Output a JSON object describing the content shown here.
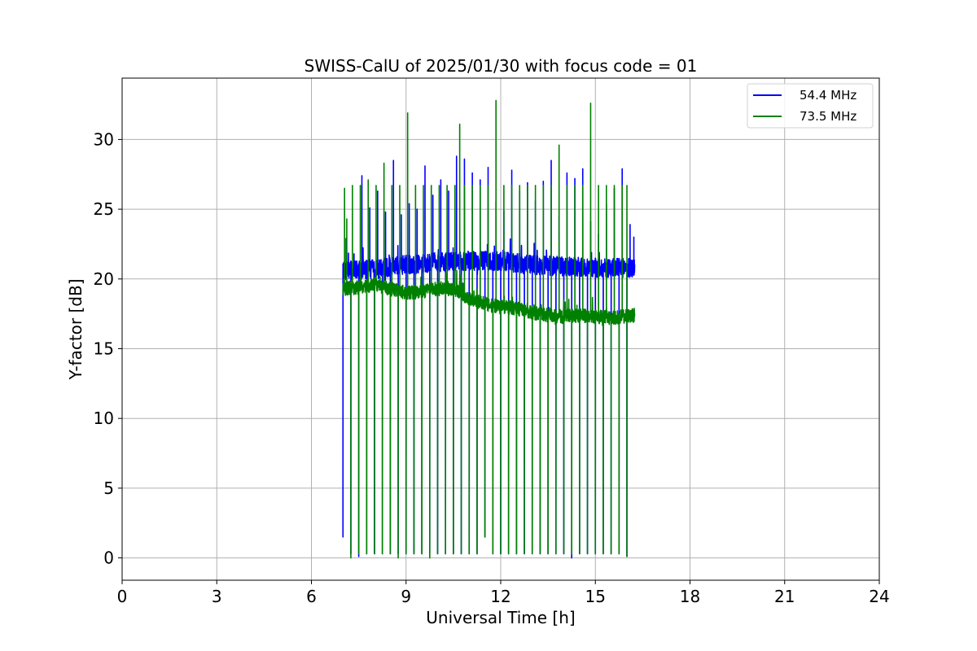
{
  "chart_data": {
    "type": "line",
    "title": "SWISS-CalU of 2025/01/30 with focus code = 01",
    "xlabel": "Universal Time [h]",
    "ylabel": "Y-factor [dB]",
    "xlim": [
      0,
      24
    ],
    "ylim": [
      -1.6,
      34.4
    ],
    "xticks": [
      0,
      3,
      6,
      9,
      12,
      15,
      18,
      21,
      24
    ],
    "yticks": [
      0,
      5,
      10,
      15,
      20,
      25,
      30
    ],
    "grid": true,
    "legend_position": "upper right",
    "time_range": [
      7.0,
      16.25
    ],
    "calibration_period_h": 0.25,
    "series": [
      {
        "name": "54.4 MHz",
        "color": "#0000ff",
        "baseline": [
          [
            7.0,
            20.6
          ],
          [
            8.0,
            20.7
          ],
          [
            9.0,
            21.0
          ],
          [
            10.0,
            21.2
          ],
          [
            11.0,
            21.3
          ],
          [
            12.0,
            21.3
          ],
          [
            13.0,
            21.0
          ],
          [
            14.0,
            20.9
          ],
          [
            15.0,
            20.8
          ],
          [
            16.25,
            20.8
          ]
        ],
        "noise_db": 0.7,
        "peaks": [
          [
            7.1,
            22.9
          ],
          [
            7.35,
            21.8
          ],
          [
            7.6,
            27.4
          ],
          [
            7.85,
            25.1
          ],
          [
            8.1,
            26.3
          ],
          [
            8.35,
            24.8
          ],
          [
            8.6,
            28.5
          ],
          [
            8.85,
            24.6
          ],
          [
            9.1,
            25.4
          ],
          [
            9.35,
            25.0
          ],
          [
            9.6,
            28.1
          ],
          [
            9.85,
            26.0
          ],
          [
            10.1,
            27.1
          ],
          [
            10.35,
            26.3
          ],
          [
            10.6,
            28.8
          ],
          [
            10.85,
            28.6
          ],
          [
            11.1,
            27.6
          ],
          [
            11.35,
            27.1
          ],
          [
            11.6,
            28.0
          ],
          [
            11.85,
            25.6
          ],
          [
            12.1,
            24.9
          ],
          [
            12.35,
            27.8
          ],
          [
            12.6,
            26.3
          ],
          [
            12.85,
            26.9
          ],
          [
            13.1,
            25.6
          ],
          [
            13.35,
            27.0
          ],
          [
            13.6,
            28.5
          ],
          [
            13.85,
            24.5
          ],
          [
            14.1,
            27.6
          ],
          [
            14.35,
            27.2
          ],
          [
            14.6,
            27.9
          ],
          [
            14.85,
            24.1
          ],
          [
            15.1,
            23.2
          ],
          [
            15.35,
            25.4
          ],
          [
            15.6,
            26.5
          ],
          [
            15.85,
            27.9
          ],
          [
            16.1,
            23.9
          ],
          [
            16.22,
            23.0
          ]
        ],
        "drops": [
          [
            7.0,
            1.5
          ],
          [
            7.25,
            0.3
          ],
          [
            7.5,
            0.1
          ],
          [
            7.75,
            0.3
          ],
          [
            8.0,
            0.3
          ],
          [
            8.25,
            0.3
          ],
          [
            8.5,
            0.3
          ],
          [
            8.75,
            0.3
          ],
          [
            9.0,
            0.3
          ],
          [
            9.25,
            0.3
          ],
          [
            9.5,
            0.3
          ],
          [
            9.75,
            0.3
          ],
          [
            10.0,
            0.3
          ],
          [
            10.25,
            0.3
          ],
          [
            10.5,
            0.3
          ],
          [
            10.75,
            0.3
          ],
          [
            11.0,
            0.3
          ],
          [
            11.25,
            0.3
          ],
          [
            11.5,
            1.5
          ],
          [
            11.75,
            0.3
          ],
          [
            12.0,
            0.3
          ],
          [
            12.25,
            0.3
          ],
          [
            12.5,
            0.3
          ],
          [
            12.75,
            0.3
          ],
          [
            13.0,
            0.3
          ],
          [
            13.25,
            0.3
          ],
          [
            13.5,
            0.3
          ],
          [
            13.75,
            0.3
          ],
          [
            14.0,
            0.3
          ],
          [
            14.25,
            0.0
          ],
          [
            14.5,
            0.3
          ],
          [
            14.75,
            0.3
          ],
          [
            15.0,
            0.3
          ],
          [
            15.25,
            0.3
          ],
          [
            15.5,
            0.3
          ],
          [
            15.75,
            0.3
          ],
          [
            16.0,
            0.1
          ]
        ]
      },
      {
        "name": "73.5 MHz",
        "color": "#008000",
        "baseline": [
          [
            7.0,
            19.3
          ],
          [
            7.5,
            19.4
          ],
          [
            8.0,
            19.6
          ],
          [
            8.5,
            19.3
          ],
          [
            9.0,
            19.0
          ],
          [
            9.5,
            19.1
          ],
          [
            10.0,
            19.3
          ],
          [
            10.5,
            19.3
          ],
          [
            11.0,
            18.6
          ],
          [
            11.5,
            18.2
          ],
          [
            12.0,
            18.0
          ],
          [
            12.5,
            17.9
          ],
          [
            13.0,
            17.6
          ],
          [
            13.5,
            17.4
          ],
          [
            14.0,
            17.3
          ],
          [
            14.5,
            17.4
          ],
          [
            15.0,
            17.3
          ],
          [
            15.5,
            17.2
          ],
          [
            16.25,
            17.4
          ]
        ],
        "noise_db": 0.5,
        "peaks": [
          [
            7.05,
            26.5
          ],
          [
            7.12,
            24.3
          ],
          [
            7.3,
            26.7
          ],
          [
            7.55,
            26.7
          ],
          [
            7.8,
            27.1
          ],
          [
            8.05,
            26.7
          ],
          [
            8.3,
            28.3
          ],
          [
            8.55,
            26.7
          ],
          [
            8.8,
            26.7
          ],
          [
            9.05,
            31.9
          ],
          [
            9.3,
            26.7
          ],
          [
            9.55,
            26.7
          ],
          [
            9.8,
            26.7
          ],
          [
            10.05,
            26.7
          ],
          [
            10.3,
            26.7
          ],
          [
            10.55,
            26.7
          ],
          [
            10.7,
            31.1
          ],
          [
            10.85,
            26.7
          ],
          [
            11.1,
            26.7
          ],
          [
            11.35,
            26.7
          ],
          [
            11.6,
            26.7
          ],
          [
            11.85,
            32.8
          ],
          [
            12.1,
            26.7
          ],
          [
            12.35,
            26.7
          ],
          [
            12.6,
            26.7
          ],
          [
            12.85,
            26.7
          ],
          [
            13.1,
            26.7
          ],
          [
            13.35,
            26.7
          ],
          [
            13.6,
            26.7
          ],
          [
            13.85,
            29.6
          ],
          [
            14.1,
            26.7
          ],
          [
            14.35,
            26.7
          ],
          [
            14.6,
            26.7
          ],
          [
            14.85,
            32.6
          ],
          [
            15.1,
            26.7
          ],
          [
            15.35,
            26.7
          ],
          [
            15.6,
            26.7
          ],
          [
            15.85,
            26.7
          ],
          [
            16.0,
            26.7
          ]
        ],
        "drops": [
          [
            7.0,
            19.0
          ],
          [
            7.25,
            0.0
          ],
          [
            7.5,
            0.3
          ],
          [
            7.75,
            0.3
          ],
          [
            8.0,
            0.3
          ],
          [
            8.25,
            0.3
          ],
          [
            8.5,
            0.3
          ],
          [
            8.75,
            0.0
          ],
          [
            9.0,
            0.3
          ],
          [
            9.25,
            0.3
          ],
          [
            9.5,
            0.3
          ],
          [
            9.75,
            0.0
          ],
          [
            10.0,
            0.3
          ],
          [
            10.25,
            0.3
          ],
          [
            10.5,
            0.3
          ],
          [
            10.75,
            0.3
          ],
          [
            11.0,
            0.3
          ],
          [
            11.25,
            0.3
          ],
          [
            11.5,
            1.5
          ],
          [
            11.75,
            0.3
          ],
          [
            12.0,
            0.3
          ],
          [
            12.25,
            0.3
          ],
          [
            12.5,
            0.3
          ],
          [
            12.75,
            0.3
          ],
          [
            13.0,
            0.3
          ],
          [
            13.25,
            0.3
          ],
          [
            13.5,
            0.3
          ],
          [
            13.75,
            0.3
          ],
          [
            14.0,
            0.3
          ],
          [
            14.25,
            0.3
          ],
          [
            14.5,
            0.3
          ],
          [
            14.75,
            0.3
          ],
          [
            15.0,
            0.3
          ],
          [
            15.25,
            0.3
          ],
          [
            15.5,
            0.3
          ],
          [
            15.75,
            0.3
          ],
          [
            16.0,
            0.1
          ]
        ]
      }
    ]
  }
}
